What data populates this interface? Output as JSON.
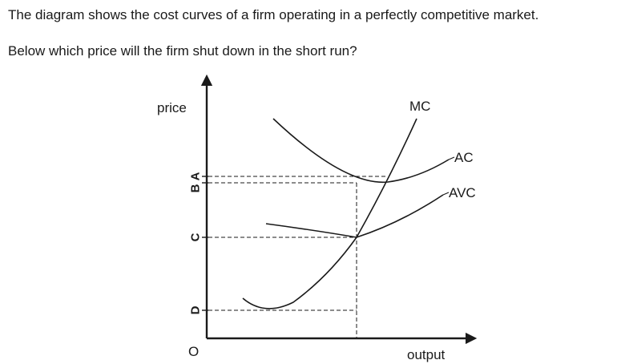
{
  "question": {
    "line1": "The diagram shows the cost curves of a firm operating in a perfectly competitive market.",
    "line2": "Below which price will the firm shut down in the short run?"
  },
  "diagram": {
    "y_axis_label": "price",
    "x_axis_label": "output",
    "origin_label": "O",
    "curves": {
      "mc": "MC",
      "ac": "AC",
      "avc": "AVC"
    },
    "price_levels": {
      "a": "A",
      "b": "B",
      "c": "C",
      "d": "D"
    }
  }
}
